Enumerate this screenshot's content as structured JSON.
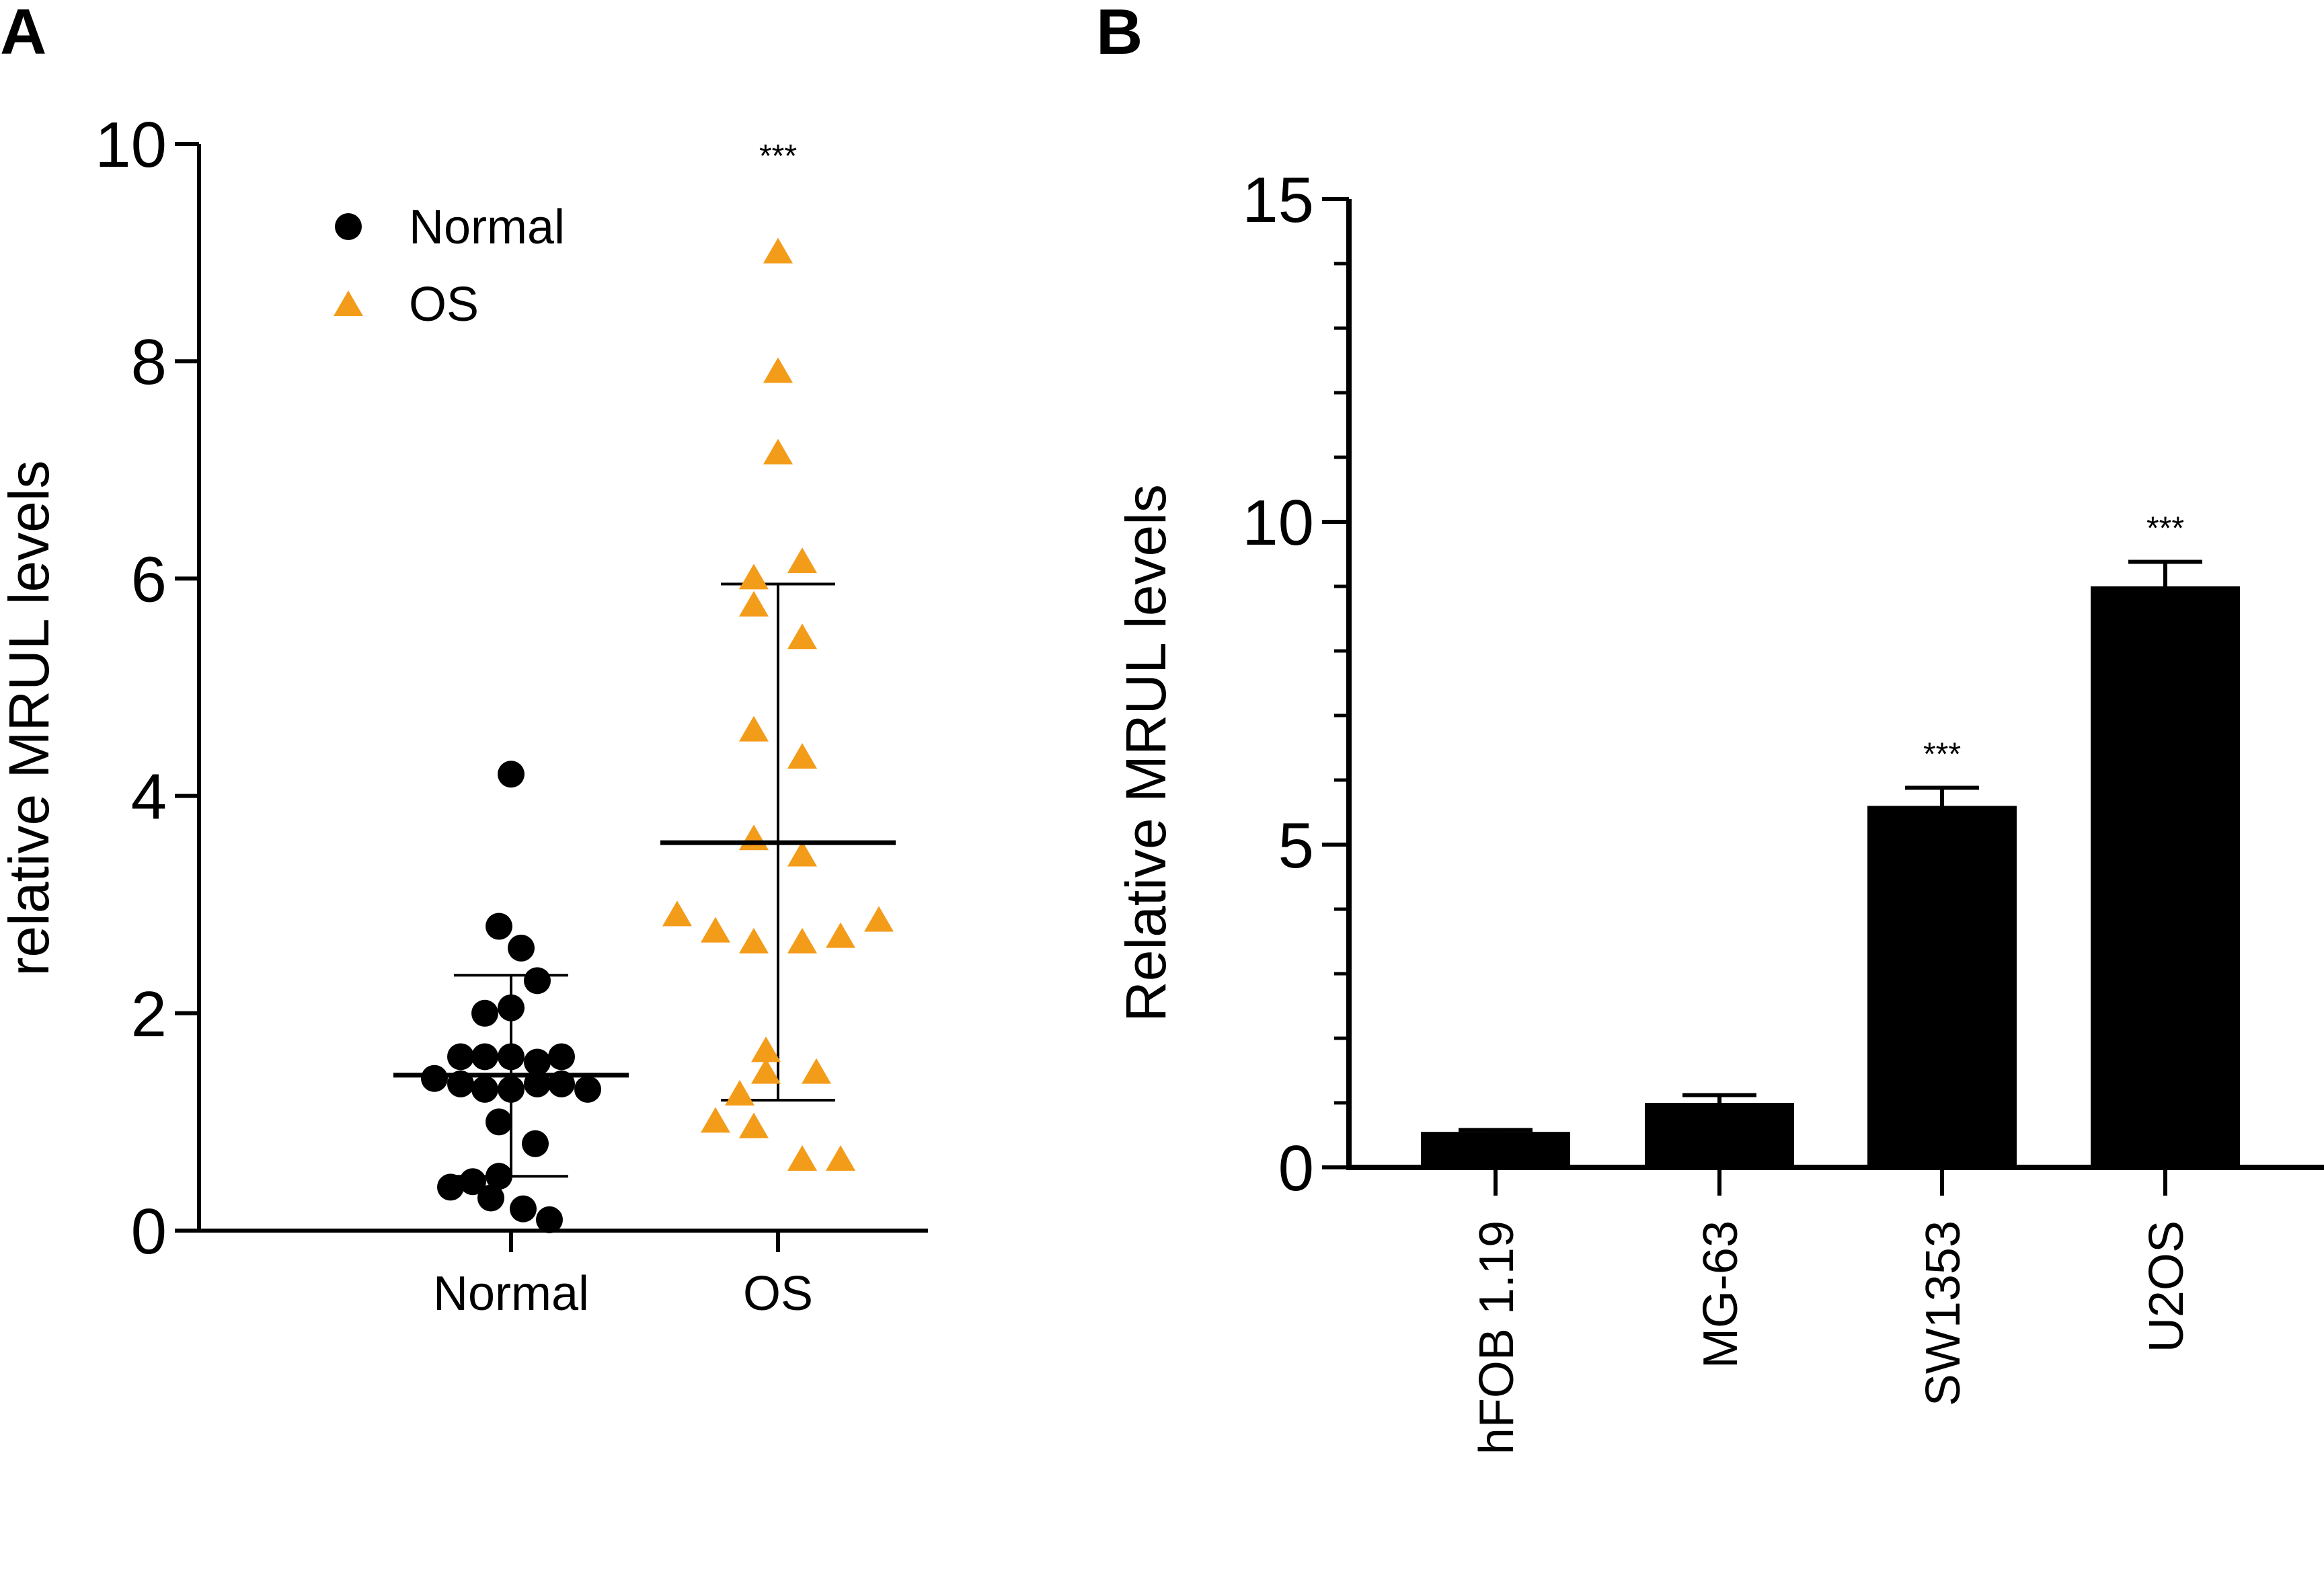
{
  "chart_data": [
    {
      "panel": "A",
      "type": "scatter",
      "ylabel": "relative  MRUL  levels",
      "ylim": [
        0,
        10
      ],
      "yticks": [
        0,
        2,
        4,
        6,
        8,
        10
      ],
      "categories": [
        "Normal",
        "OS"
      ],
      "legend": {
        "placement": "top-left",
        "entries": [
          "Normal",
          "OS"
        ]
      },
      "colors": {
        "Normal": "#000000",
        "OS": "#F39C1A"
      },
      "significance": {
        "OS": "***"
      },
      "series": [
        {
          "name": "Normal",
          "marker": "circle",
          "summary": {
            "mean": 1.43,
            "sd_low": 0.5,
            "sd_high": 2.35
          },
          "points": [
            {
              "dx": 0.0,
              "y": 4.2
            },
            {
              "dx": -0.06,
              "y": 2.8
            },
            {
              "dx": 0.05,
              "y": 2.6
            },
            {
              "dx": 0.13,
              "y": 2.3
            },
            {
              "dx": -0.13,
              "y": 2.0
            },
            {
              "dx": 0.0,
              "y": 2.05
            },
            {
              "dx": -0.25,
              "y": 1.6
            },
            {
              "dx": -0.13,
              "y": 1.6
            },
            {
              "dx": 0.0,
              "y": 1.6
            },
            {
              "dx": 0.13,
              "y": 1.55
            },
            {
              "dx": 0.25,
              "y": 1.6
            },
            {
              "dx": -0.38,
              "y": 1.4
            },
            {
              "dx": -0.25,
              "y": 1.35
            },
            {
              "dx": -0.13,
              "y": 1.3
            },
            {
              "dx": 0.0,
              "y": 1.3
            },
            {
              "dx": 0.13,
              "y": 1.35
            },
            {
              "dx": 0.25,
              "y": 1.35
            },
            {
              "dx": 0.38,
              "y": 1.3
            },
            {
              "dx": -0.06,
              "y": 1.0
            },
            {
              "dx": 0.12,
              "y": 0.8
            },
            {
              "dx": -0.19,
              "y": 0.45
            },
            {
              "dx": -0.06,
              "y": 0.5
            },
            {
              "dx": -0.3,
              "y": 0.4
            },
            {
              "dx": -0.1,
              "y": 0.3
            },
            {
              "dx": 0.06,
              "y": 0.2
            },
            {
              "dx": 0.19,
              "y": 0.1
            }
          ]
        },
        {
          "name": "OS",
          "marker": "triangle",
          "summary": {
            "mean": 3.57,
            "sd_low": 1.2,
            "sd_high": 5.95
          },
          "points": [
            {
              "dx": 0.0,
              "y": 9.0
            },
            {
              "dx": 0.0,
              "y": 7.9
            },
            {
              "dx": 0.0,
              "y": 7.15
            },
            {
              "dx": 0.12,
              "y": 6.15
            },
            {
              "dx": -0.12,
              "y": 6.0
            },
            {
              "dx": -0.12,
              "y": 5.75
            },
            {
              "dx": 0.12,
              "y": 5.45
            },
            {
              "dx": -0.12,
              "y": 4.6
            },
            {
              "dx": 0.12,
              "y": 4.35
            },
            {
              "dx": -0.12,
              "y": 3.6
            },
            {
              "dx": 0.12,
              "y": 3.45
            },
            {
              "dx": -0.5,
              "y": 2.9
            },
            {
              "dx": -0.31,
              "y": 2.75
            },
            {
              "dx": -0.12,
              "y": 2.65
            },
            {
              "dx": 0.12,
              "y": 2.65
            },
            {
              "dx": 0.31,
              "y": 2.7
            },
            {
              "dx": 0.5,
              "y": 2.85
            },
            {
              "dx": -0.06,
              "y": 1.65
            },
            {
              "dx": -0.06,
              "y": 1.45
            },
            {
              "dx": 0.19,
              "y": 1.45
            },
            {
              "dx": -0.19,
              "y": 1.25
            },
            {
              "dx": -0.31,
              "y": 1.0
            },
            {
              "dx": -0.12,
              "y": 0.95
            },
            {
              "dx": 0.12,
              "y": 0.65
            },
            {
              "dx": 0.31,
              "y": 0.65
            }
          ]
        }
      ]
    },
    {
      "panel": "B",
      "type": "bar",
      "ylabel": "Relative  MRUL  levels",
      "ylim": [
        0,
        15
      ],
      "yticks": [
        0,
        5,
        10,
        15
      ],
      "categories": [
        "hFOB 1.19",
        "MG-63",
        "SW1353",
        "U2OS"
      ],
      "values": [
        0.55,
        1.0,
        5.6,
        9.0
      ],
      "errors": [
        0.03,
        0.12,
        0.28,
        0.38
      ],
      "significance": [
        "",
        "",
        "***",
        "***"
      ],
      "colors": {
        "bar": "#000000"
      }
    }
  ]
}
